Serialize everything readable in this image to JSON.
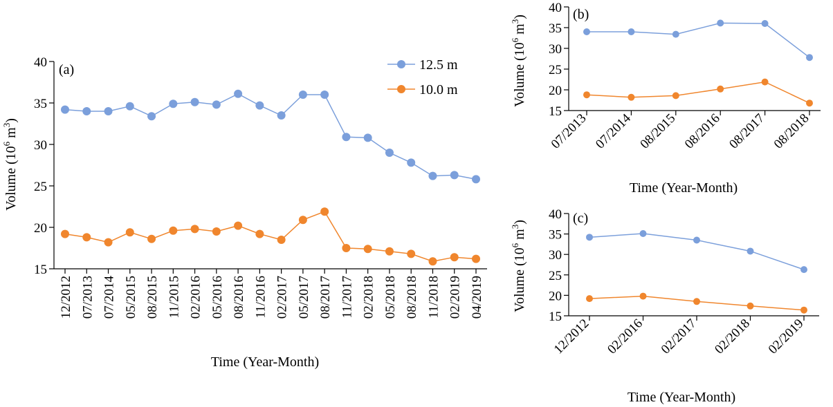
{
  "colors": {
    "series_a": "#7B9FDB",
    "series_b": "#F0862D"
  },
  "legend": {
    "position": "top-right",
    "entries": [
      "12.5 m",
      "10.0 m"
    ]
  },
  "chart_data": [
    {
      "type": "line",
      "panel": "(a)",
      "xlabel": "Time (Year-Month)",
      "ylabel_main": "Volume (10",
      "ylabel_sup": "6",
      "ylabel_tail": " m",
      "ylabel_sup2": "3",
      "ylabel_close": ")",
      "ylim": [
        15,
        40
      ],
      "yticks": [
        15,
        20,
        25,
        30,
        35,
        40
      ],
      "categories": [
        "12/2012",
        "07/2013",
        "07/2014",
        "05/2015",
        "08/2015",
        "11/2015",
        "02/2016",
        "05/2016",
        "08/2016",
        "11/2016",
        "02/2017",
        "05/2017",
        "08/2017",
        "11/2017",
        "02/2018",
        "05/2018",
        "08/2018",
        "11/2018",
        "02/2019",
        "04/2019"
      ],
      "series": [
        {
          "name": "12.5 m",
          "values": [
            34.2,
            34.0,
            34.0,
            34.6,
            33.4,
            34.9,
            35.1,
            34.8,
            36.1,
            34.7,
            33.5,
            36.0,
            36.0,
            30.9,
            30.8,
            29.0,
            27.8,
            26.2,
            26.3,
            25.8
          ]
        },
        {
          "name": "10.0 m",
          "values": [
            19.2,
            18.8,
            18.2,
            19.4,
            18.6,
            19.6,
            19.8,
            19.5,
            20.2,
            19.2,
            18.5,
            20.9,
            21.9,
            17.5,
            17.4,
            17.1,
            16.8,
            15.9,
            16.4,
            16.2
          ]
        }
      ]
    },
    {
      "type": "line",
      "panel": "(b)",
      "xlabel": "Time (Year-Month)",
      "ylabel_main": "Volume (10",
      "ylabel_sup": "6",
      "ylabel_tail": " m",
      "ylabel_sup2": "3",
      "ylabel_close": ")",
      "ylim": [
        15,
        40
      ],
      "yticks": [
        15,
        20,
        25,
        30,
        35,
        40
      ],
      "categories": [
        "07/2013",
        "07/2014",
        "08/2015",
        "08/2016",
        "08/2017",
        "08/2018"
      ],
      "series": [
        {
          "name": "12.5 m",
          "values": [
            34.0,
            34.0,
            33.4,
            36.1,
            36.0,
            27.8
          ]
        },
        {
          "name": "10.0 m",
          "values": [
            18.8,
            18.2,
            18.6,
            20.2,
            21.9,
            16.8
          ]
        }
      ]
    },
    {
      "type": "line",
      "panel": "(c)",
      "xlabel": "Time (Year-Month)",
      "ylabel_main": "Volume (10",
      "ylabel_sup": "6",
      "ylabel_tail": " m",
      "ylabel_sup2": "3",
      "ylabel_close": ")",
      "ylim": [
        15,
        40
      ],
      "yticks": [
        15,
        20,
        25,
        30,
        35,
        40
      ],
      "categories": [
        "12/2012",
        "02/2016",
        "02/2017",
        "02/2018",
        "02/2019"
      ],
      "series": [
        {
          "name": "12.5 m",
          "values": [
            34.2,
            35.1,
            33.5,
            30.8,
            26.3
          ]
        },
        {
          "name": "10.0 m",
          "values": [
            19.2,
            19.8,
            18.5,
            17.4,
            16.4
          ]
        }
      ]
    }
  ]
}
